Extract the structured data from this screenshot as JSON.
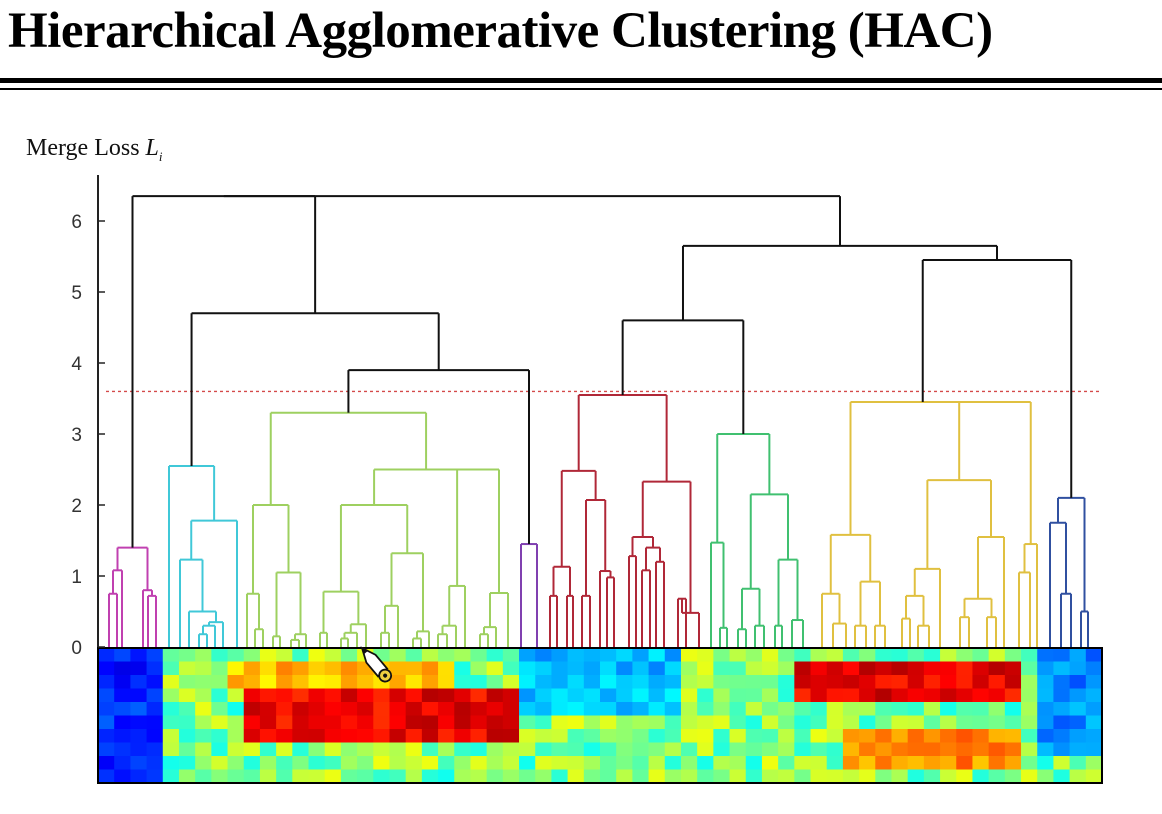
{
  "title": "Hierarchical Agglomerative Clustering (HAC)",
  "y_axis": {
    "label_text": "Merge Loss ",
    "label_var": "L",
    "label_sub": "i",
    "ticks": [
      "0",
      "1",
      "2",
      "3",
      "4",
      "5",
      "6"
    ],
    "range": [
      0,
      6.6
    ]
  },
  "threshold": {
    "value": 3.6,
    "color": "#d44a4a",
    "style": "dashed"
  },
  "colors": {
    "magenta": "#c040b0",
    "cyan": "#40c8d8",
    "lime": "#9ed060",
    "purple": "#8040b0",
    "crimson": "#b02838",
    "green": "#40c070",
    "gold": "#e0c040",
    "blue": "#3050a0",
    "black": "#111111"
  },
  "clusters": [
    {
      "name": "magenta",
      "leaf_count": 5,
      "height": 1.4
    },
    {
      "name": "cyan",
      "leaf_count": 7,
      "height": 2.55
    },
    {
      "name": "lime",
      "leaf_count": 17,
      "height": 3.3
    },
    {
      "name": "purple",
      "leaf_count": 2,
      "height": 1.45
    },
    {
      "name": "crimson",
      "leaf_count": 14,
      "height": 3.55
    },
    {
      "name": "green",
      "leaf_count": 9,
      "height": 3.0
    },
    {
      "name": "gold",
      "leaf_count": 16,
      "height": 3.45
    },
    {
      "name": "blue",
      "leaf_count": 4,
      "height": 2.1
    }
  ],
  "upper_merges": [
    {
      "children": [
        "lime",
        "purple"
      ],
      "height": 3.9
    },
    {
      "children": [
        "cyan",
        "lime+purple"
      ],
      "height": 4.7
    },
    {
      "children": [
        "magenta",
        "cyan+lime+purple"
      ],
      "height": 6.35
    },
    {
      "children": [
        "crimson",
        "green"
      ],
      "height": 4.6
    },
    {
      "children": [
        "gold",
        "blue"
      ],
      "height": 5.45
    },
    {
      "children": [
        "crimson+green",
        "gold+blue"
      ],
      "height": 5.65
    },
    {
      "children": [
        "left",
        "right"
      ],
      "height": 6.35
    }
  ],
  "heatmap": {
    "rows": 10,
    "cols": 62,
    "colormap": "jet",
    "hot_bands": [
      {
        "col_start": 9,
        "col_end": 26,
        "row_start": 3,
        "row_end": 7,
        "intensity": 0.95
      },
      {
        "col_start": 8,
        "col_end": 22,
        "row_start": 1,
        "row_end": 3,
        "intensity": 0.75
      },
      {
        "col_start": 43,
        "col_end": 57,
        "row_start": 1,
        "row_end": 4,
        "intensity": 0.95
      },
      {
        "col_start": 46,
        "col_end": 57,
        "row_start": 6,
        "row_end": 9,
        "intensity": 0.8
      }
    ],
    "cold_blocks": [
      {
        "col_start": 0,
        "col_end": 4,
        "row_start": 0,
        "row_end": 10,
        "intensity": 0.1
      },
      {
        "col_start": 26,
        "col_end": 36,
        "row_start": 0,
        "row_end": 5,
        "intensity": 0.25
      },
      {
        "col_start": 58,
        "col_end": 62,
        "row_start": 0,
        "row_end": 8,
        "intensity": 0.2
      }
    ]
  },
  "cursor": {
    "shape": "pen-pointer-icon"
  }
}
